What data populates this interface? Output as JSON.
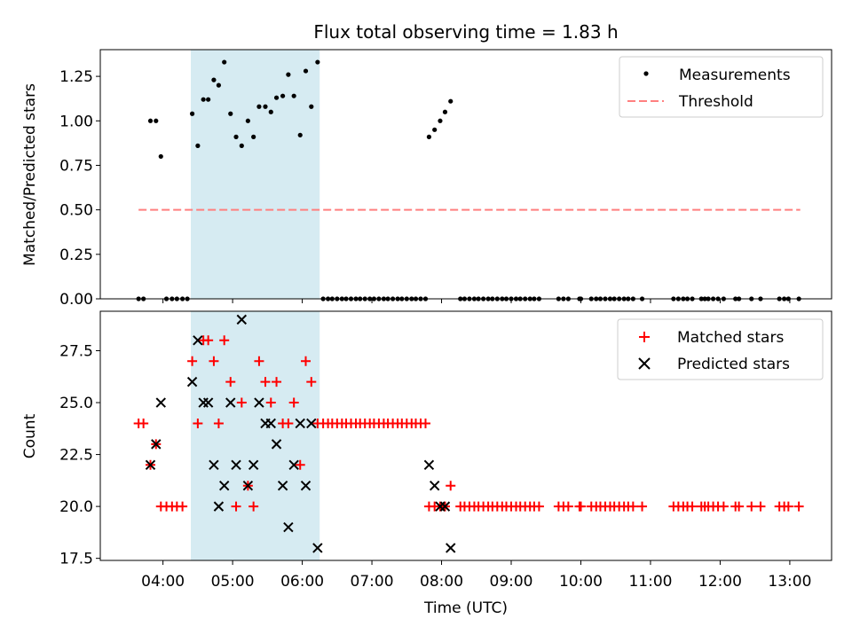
{
  "chart_data": {
    "title": "Flux total observing time = 1.83 h",
    "xlabel": "Time (UTC)",
    "x_unit": "hours UTC",
    "xlim": [
      3.1,
      13.6
    ],
    "x_ticks": [
      4,
      5,
      6,
      7,
      8,
      9,
      10,
      11,
      12,
      13
    ],
    "x_tick_labels": [
      "04:00",
      "05:00",
      "06:00",
      "07:00",
      "08:00",
      "09:00",
      "10:00",
      "11:00",
      "12:00",
      "13:00"
    ],
    "shaded_span": [
      4.4,
      6.25
    ],
    "colors": {
      "measurement": "#000000",
      "threshold": "#ff7f7f",
      "matched": "#ff0000",
      "predicted": "#000000",
      "shade": "#add8e6"
    },
    "panels": [
      {
        "type": "scatter",
        "ylabel": "Matched/Predicted stars",
        "ylim": [
          0,
          1.4
        ],
        "y_ticks": [
          0,
          0.25,
          0.5,
          0.75,
          1.0,
          1.25
        ],
        "y_tick_labels": [
          "0.00",
          "0.25",
          "0.50",
          "0.75",
          "1.00",
          "1.25"
        ],
        "legend": [
          {
            "label": "Measurements",
            "marker": "dot"
          },
          {
            "label": "Threshold",
            "marker": "dash"
          }
        ],
        "threshold": {
          "value": 0.5,
          "x_start": 3.65,
          "x_end": 13.15
        },
        "measurements": [
          [
            3.65,
            0
          ],
          [
            3.72,
            0
          ],
          [
            3.82,
            1.0
          ],
          [
            3.9,
            1.0
          ],
          [
            3.97,
            0.8
          ],
          [
            4.05,
            0
          ],
          [
            4.13,
            0
          ],
          [
            4.2,
            0
          ],
          [
            4.28,
            0
          ],
          [
            4.35,
            0
          ],
          [
            4.42,
            1.04
          ],
          [
            4.5,
            0.86
          ],
          [
            4.58,
            1.12
          ],
          [
            4.65,
            1.12
          ],
          [
            4.73,
            1.23
          ],
          [
            4.8,
            1.2
          ],
          [
            4.88,
            1.33
          ],
          [
            4.97,
            1.04
          ],
          [
            5.05,
            0.91
          ],
          [
            5.13,
            0.86
          ],
          [
            5.22,
            1.0
          ],
          [
            5.3,
            0.91
          ],
          [
            5.38,
            1.08
          ],
          [
            5.47,
            1.08
          ],
          [
            5.55,
            1.05
          ],
          [
            5.63,
            1.13
          ],
          [
            5.72,
            1.14
          ],
          [
            5.8,
            1.26
          ],
          [
            5.88,
            1.14
          ],
          [
            5.97,
            0.92
          ],
          [
            6.05,
            1.28
          ],
          [
            6.13,
            1.08
          ],
          [
            6.22,
            1.33
          ],
          [
            6.3,
            0
          ],
          [
            6.37,
            0
          ],
          [
            6.43,
            0
          ],
          [
            6.5,
            0
          ],
          [
            6.57,
            0
          ],
          [
            6.63,
            0
          ],
          [
            6.7,
            0
          ],
          [
            6.77,
            0
          ],
          [
            6.83,
            0
          ],
          [
            6.9,
            0
          ],
          [
            6.97,
            0
          ],
          [
            7.03,
            0
          ],
          [
            7.1,
            0
          ],
          [
            7.17,
            0
          ],
          [
            7.23,
            0
          ],
          [
            7.3,
            0
          ],
          [
            7.37,
            0
          ],
          [
            7.43,
            0
          ],
          [
            7.5,
            0
          ],
          [
            7.57,
            0
          ],
          [
            7.63,
            0
          ],
          [
            7.7,
            0
          ],
          [
            7.77,
            0
          ],
          [
            7.82,
            0.91
          ],
          [
            7.9,
            0.95
          ],
          [
            7.98,
            1.0
          ],
          [
            8.05,
            1.05
          ],
          [
            8.13,
            1.11
          ],
          [
            8.27,
            0
          ],
          [
            8.33,
            0
          ],
          [
            8.4,
            0
          ],
          [
            8.47,
            0
          ],
          [
            8.53,
            0
          ],
          [
            8.6,
            0
          ],
          [
            8.67,
            0
          ],
          [
            8.73,
            0
          ],
          [
            8.8,
            0
          ],
          [
            8.87,
            0
          ],
          [
            8.93,
            0
          ],
          [
            9.0,
            0
          ],
          [
            9.07,
            0
          ],
          [
            9.13,
            0
          ],
          [
            9.2,
            0
          ],
          [
            9.27,
            0
          ],
          [
            9.33,
            0
          ],
          [
            9.4,
            0
          ],
          [
            9.68,
            0
          ],
          [
            9.75,
            0
          ],
          [
            9.82,
            0
          ],
          [
            9.98,
            0
          ],
          [
            10.0,
            0
          ],
          [
            10.15,
            0
          ],
          [
            10.22,
            0
          ],
          [
            10.28,
            0
          ],
          [
            10.35,
            0
          ],
          [
            10.42,
            0
          ],
          [
            10.48,
            0
          ],
          [
            10.55,
            0
          ],
          [
            10.62,
            0
          ],
          [
            10.68,
            0
          ],
          [
            10.75,
            0
          ],
          [
            10.88,
            0
          ],
          [
            11.33,
            0
          ],
          [
            11.4,
            0
          ],
          [
            11.47,
            0
          ],
          [
            11.53,
            0
          ],
          [
            11.6,
            0
          ],
          [
            11.73,
            0
          ],
          [
            11.78,
            0
          ],
          [
            11.83,
            0
          ],
          [
            11.9,
            0
          ],
          [
            11.97,
            0
          ],
          [
            12.05,
            0
          ],
          [
            12.22,
            0
          ],
          [
            12.27,
            0
          ],
          [
            12.45,
            0
          ],
          [
            12.58,
            0
          ],
          [
            12.85,
            0
          ],
          [
            12.92,
            0
          ],
          [
            12.98,
            0
          ],
          [
            13.13,
            0
          ]
        ]
      },
      {
        "type": "scatter",
        "ylabel": "Count",
        "ylim": [
          17.4,
          29.4
        ],
        "y_ticks": [
          17.5,
          20.0,
          22.5,
          25.0,
          27.5
        ],
        "y_tick_labels": [
          "17.5",
          "20.0",
          "22.5",
          "25.0",
          "27.5"
        ],
        "legend": [
          {
            "label": "Matched stars",
            "marker": "plus"
          },
          {
            "label": "Predicted stars",
            "marker": "x"
          }
        ],
        "matched": [
          [
            3.65,
            24
          ],
          [
            3.72,
            24
          ],
          [
            3.82,
            22
          ],
          [
            3.9,
            23
          ],
          [
            3.97,
            20
          ],
          [
            4.05,
            20
          ],
          [
            4.13,
            20
          ],
          [
            4.2,
            20
          ],
          [
            4.28,
            20
          ],
          [
            4.42,
            27
          ],
          [
            4.5,
            24
          ],
          [
            4.58,
            28
          ],
          [
            4.65,
            28
          ],
          [
            4.73,
            27
          ],
          [
            4.8,
            24
          ],
          [
            4.88,
            28
          ],
          [
            4.97,
            26
          ],
          [
            5.05,
            20
          ],
          [
            5.13,
            25
          ],
          [
            5.22,
            21
          ],
          [
            5.3,
            20
          ],
          [
            5.38,
            27
          ],
          [
            5.47,
            26
          ],
          [
            5.55,
            25
          ],
          [
            5.63,
            26
          ],
          [
            5.72,
            24
          ],
          [
            5.8,
            24
          ],
          [
            5.88,
            25
          ],
          [
            5.97,
            22
          ],
          [
            6.05,
            27
          ],
          [
            6.13,
            26
          ],
          [
            6.22,
            24
          ],
          [
            6.3,
            24
          ],
          [
            6.37,
            24
          ],
          [
            6.43,
            24
          ],
          [
            6.5,
            24
          ],
          [
            6.57,
            24
          ],
          [
            6.63,
            24
          ],
          [
            6.7,
            24
          ],
          [
            6.77,
            24
          ],
          [
            6.83,
            24
          ],
          [
            6.9,
            24
          ],
          [
            6.97,
            24
          ],
          [
            7.03,
            24
          ],
          [
            7.1,
            24
          ],
          [
            7.17,
            24
          ],
          [
            7.23,
            24
          ],
          [
            7.3,
            24
          ],
          [
            7.37,
            24
          ],
          [
            7.43,
            24
          ],
          [
            7.5,
            24
          ],
          [
            7.57,
            24
          ],
          [
            7.63,
            24
          ],
          [
            7.7,
            24
          ],
          [
            7.77,
            24
          ],
          [
            7.82,
            20
          ],
          [
            7.9,
            20
          ],
          [
            7.98,
            20
          ],
          [
            8.05,
            20
          ],
          [
            8.13,
            21
          ],
          [
            8.27,
            20
          ],
          [
            8.33,
            20
          ],
          [
            8.4,
            20
          ],
          [
            8.47,
            20
          ],
          [
            8.53,
            20
          ],
          [
            8.6,
            20
          ],
          [
            8.67,
            20
          ],
          [
            8.73,
            20
          ],
          [
            8.8,
            20
          ],
          [
            8.87,
            20
          ],
          [
            8.93,
            20
          ],
          [
            9.0,
            20
          ],
          [
            9.07,
            20
          ],
          [
            9.13,
            20
          ],
          [
            9.2,
            20
          ],
          [
            9.27,
            20
          ],
          [
            9.33,
            20
          ],
          [
            9.4,
            20
          ],
          [
            9.68,
            20
          ],
          [
            9.75,
            20
          ],
          [
            9.82,
            20
          ],
          [
            9.98,
            20
          ],
          [
            10.0,
            20
          ],
          [
            10.15,
            20
          ],
          [
            10.22,
            20
          ],
          [
            10.28,
            20
          ],
          [
            10.35,
            20
          ],
          [
            10.42,
            20
          ],
          [
            10.48,
            20
          ],
          [
            10.55,
            20
          ],
          [
            10.62,
            20
          ],
          [
            10.68,
            20
          ],
          [
            10.75,
            20
          ],
          [
            10.88,
            20
          ],
          [
            11.33,
            20
          ],
          [
            11.4,
            20
          ],
          [
            11.47,
            20
          ],
          [
            11.53,
            20
          ],
          [
            11.6,
            20
          ],
          [
            11.73,
            20
          ],
          [
            11.78,
            20
          ],
          [
            11.83,
            20
          ],
          [
            11.9,
            20
          ],
          [
            11.97,
            20
          ],
          [
            12.05,
            20
          ],
          [
            12.22,
            20
          ],
          [
            12.27,
            20
          ],
          [
            12.45,
            20
          ],
          [
            12.58,
            20
          ],
          [
            12.85,
            20
          ],
          [
            12.92,
            20
          ],
          [
            12.98,
            20
          ],
          [
            13.13,
            20
          ]
        ],
        "predicted": [
          [
            3.82,
            22
          ],
          [
            3.9,
            23
          ],
          [
            3.97,
            25
          ],
          [
            4.42,
            26
          ],
          [
            4.5,
            28
          ],
          [
            4.58,
            25
          ],
          [
            4.65,
            25
          ],
          [
            4.73,
            22
          ],
          [
            4.8,
            20
          ],
          [
            4.88,
            21
          ],
          [
            4.97,
            25
          ],
          [
            5.05,
            22
          ],
          [
            5.13,
            29
          ],
          [
            5.22,
            21
          ],
          [
            5.3,
            22
          ],
          [
            5.38,
            25
          ],
          [
            5.47,
            24
          ],
          [
            5.55,
            24
          ],
          [
            5.63,
            23
          ],
          [
            5.72,
            21
          ],
          [
            5.8,
            19
          ],
          [
            5.88,
            22
          ],
          [
            5.97,
            24
          ],
          [
            6.05,
            21
          ],
          [
            6.13,
            24
          ],
          [
            6.22,
            18
          ],
          [
            7.82,
            22
          ],
          [
            7.9,
            21
          ],
          [
            7.98,
            20
          ],
          [
            8.05,
            20
          ],
          [
            8.13,
            18
          ]
        ]
      }
    ]
  }
}
